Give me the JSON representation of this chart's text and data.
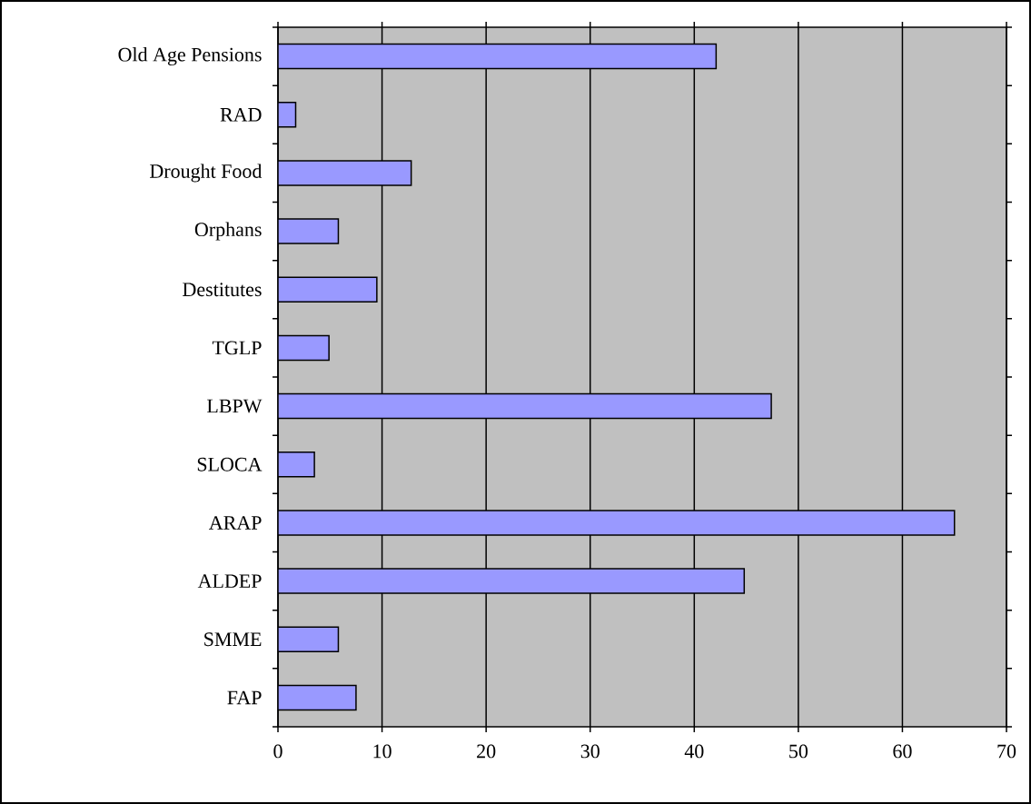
{
  "chart_data": {
    "type": "bar",
    "orientation": "horizontal",
    "categories": [
      "Old Age Pensions",
      "RAD",
      "Drought Food",
      "Orphans",
      "Destitutes",
      "TGLP",
      "LBPW",
      "SLOCA",
      "ARAP",
      "ALDEP",
      "SMME",
      "FAP"
    ],
    "values": [
      42.1,
      1.7,
      12.8,
      5.8,
      9.5,
      4.9,
      47.4,
      3.5,
      65.0,
      44.8,
      5.8,
      7.5
    ],
    "color": "#9999ff",
    "xlim": [
      0,
      70
    ],
    "xticks": [
      0,
      10,
      20,
      30,
      40,
      50,
      60,
      70
    ],
    "grid": "x"
  }
}
